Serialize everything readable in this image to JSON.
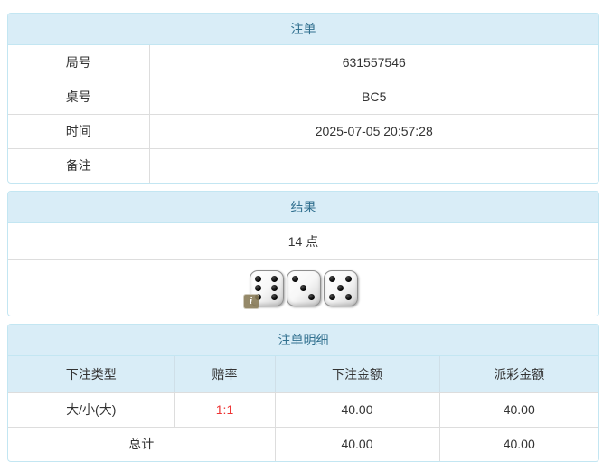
{
  "colors": {
    "panel_header_bg": "#d9edf7",
    "panel_header_text": "#31708f",
    "panel_border": "#c3e6f2",
    "cell_border": "#dddddd",
    "body_text": "#333333",
    "odds_red": "#ee3333"
  },
  "bet_order": {
    "title": "注单",
    "rows": [
      {
        "label": "局号",
        "value": "631557546"
      },
      {
        "label": "桌号",
        "value": "BC5"
      },
      {
        "label": "时间",
        "value": "2025-07-05 20:57:28"
      },
      {
        "label": "备注",
        "value": ""
      }
    ]
  },
  "result": {
    "title": "结果",
    "points_text": "14 点",
    "dice": [
      6,
      3,
      5
    ],
    "info_badge": "i"
  },
  "bet_details": {
    "title": "注单明细",
    "columns": [
      "下注类型",
      "赔率",
      "下注金额",
      "派彩金额"
    ],
    "rows": [
      {
        "type": "大/小(大)",
        "odds": "1:1",
        "bet_amount": "40.00",
        "payout_amount": "40.00"
      }
    ],
    "total": {
      "label": "总计",
      "bet_amount": "40.00",
      "payout_amount": "40.00"
    }
  }
}
